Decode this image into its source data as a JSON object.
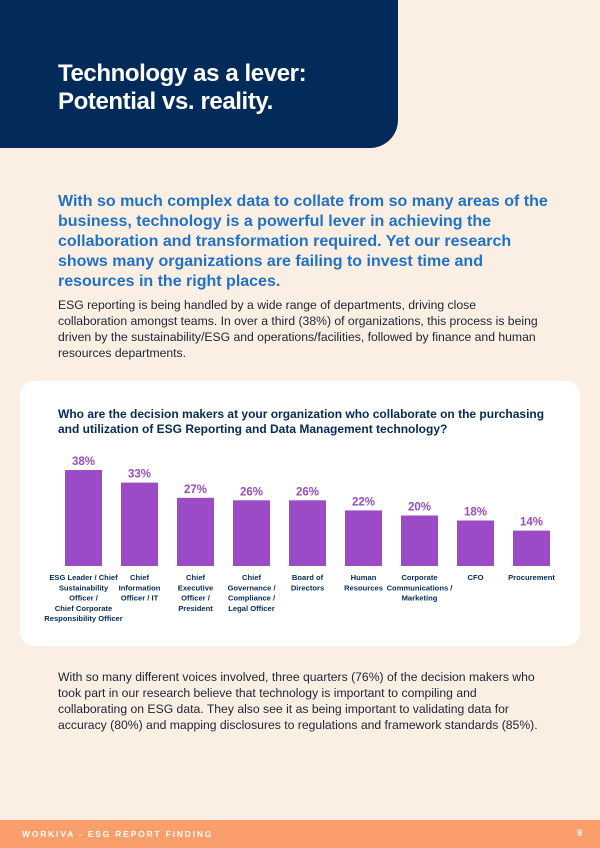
{
  "header": {
    "title_line1": "Technology as a lever:",
    "title_line2": "Potential vs. reality."
  },
  "lead": "With so much complex data to collate from so many areas of the business, technology is a powerful lever in achieving the collaboration and transformation required. Yet our research shows many organizations are failing to invest time and resources in the right places.",
  "paragraph1": "ESG reporting is being handled by a wide range of departments, driving close collaboration amongst teams. In over a third (38%) of organizations, this process is being driven by the sustainability/ESG and operations/facilities, followed by finance and human resources departments.",
  "paragraph2": "With so many different voices involved, three quarters (76%) of the decision makers who took part in our research believe that technology is important to compiling and collaborating on ESG data. They also see it as being important to validating data for accuracy (80%) and mapping disclosures to regulations and framework standards (85%).",
  "chart_data": {
    "type": "bar",
    "title": "Who are the decision makers at your organization who collaborate on the purchasing and utilization of ESG Reporting and Data Management technology?",
    "categories": [
      [
        "ESG Leader / Chief",
        "Sustainability",
        "Officer /",
        "Chief Corporate",
        "Responsibility Officer"
      ],
      [
        "Chief",
        "Information",
        "Officer / IT"
      ],
      [
        "Chief",
        "Executive",
        "Officer /",
        "President"
      ],
      [
        "Chief",
        "Governance /",
        "Compliance /",
        "Legal Officer"
      ],
      [
        "Board of",
        "Directors"
      ],
      [
        "Human",
        "Resources"
      ],
      [
        "Corporate",
        "Communications /",
        "Marketing"
      ],
      [
        "CFO"
      ],
      [
        "Procurement"
      ]
    ],
    "values": [
      38,
      33,
      27,
      26,
      26,
      22,
      20,
      18,
      14
    ],
    "value_labels": [
      "38%",
      "33%",
      "27%",
      "26%",
      "26%",
      "22%",
      "20%",
      "18%",
      "14%"
    ],
    "unit": "%",
    "ylim": [
      0,
      38
    ],
    "bar_color": "#9b4bc5",
    "label_color": "#9b4bc5"
  },
  "footer": {
    "brand": "WORKIVA - ESG REPORT FINDING",
    "page": "9"
  },
  "colors": {
    "navy": "#032b5a",
    "blue": "#1f72c9",
    "background": "#fbefe3",
    "footer": "#fa9e6b"
  }
}
